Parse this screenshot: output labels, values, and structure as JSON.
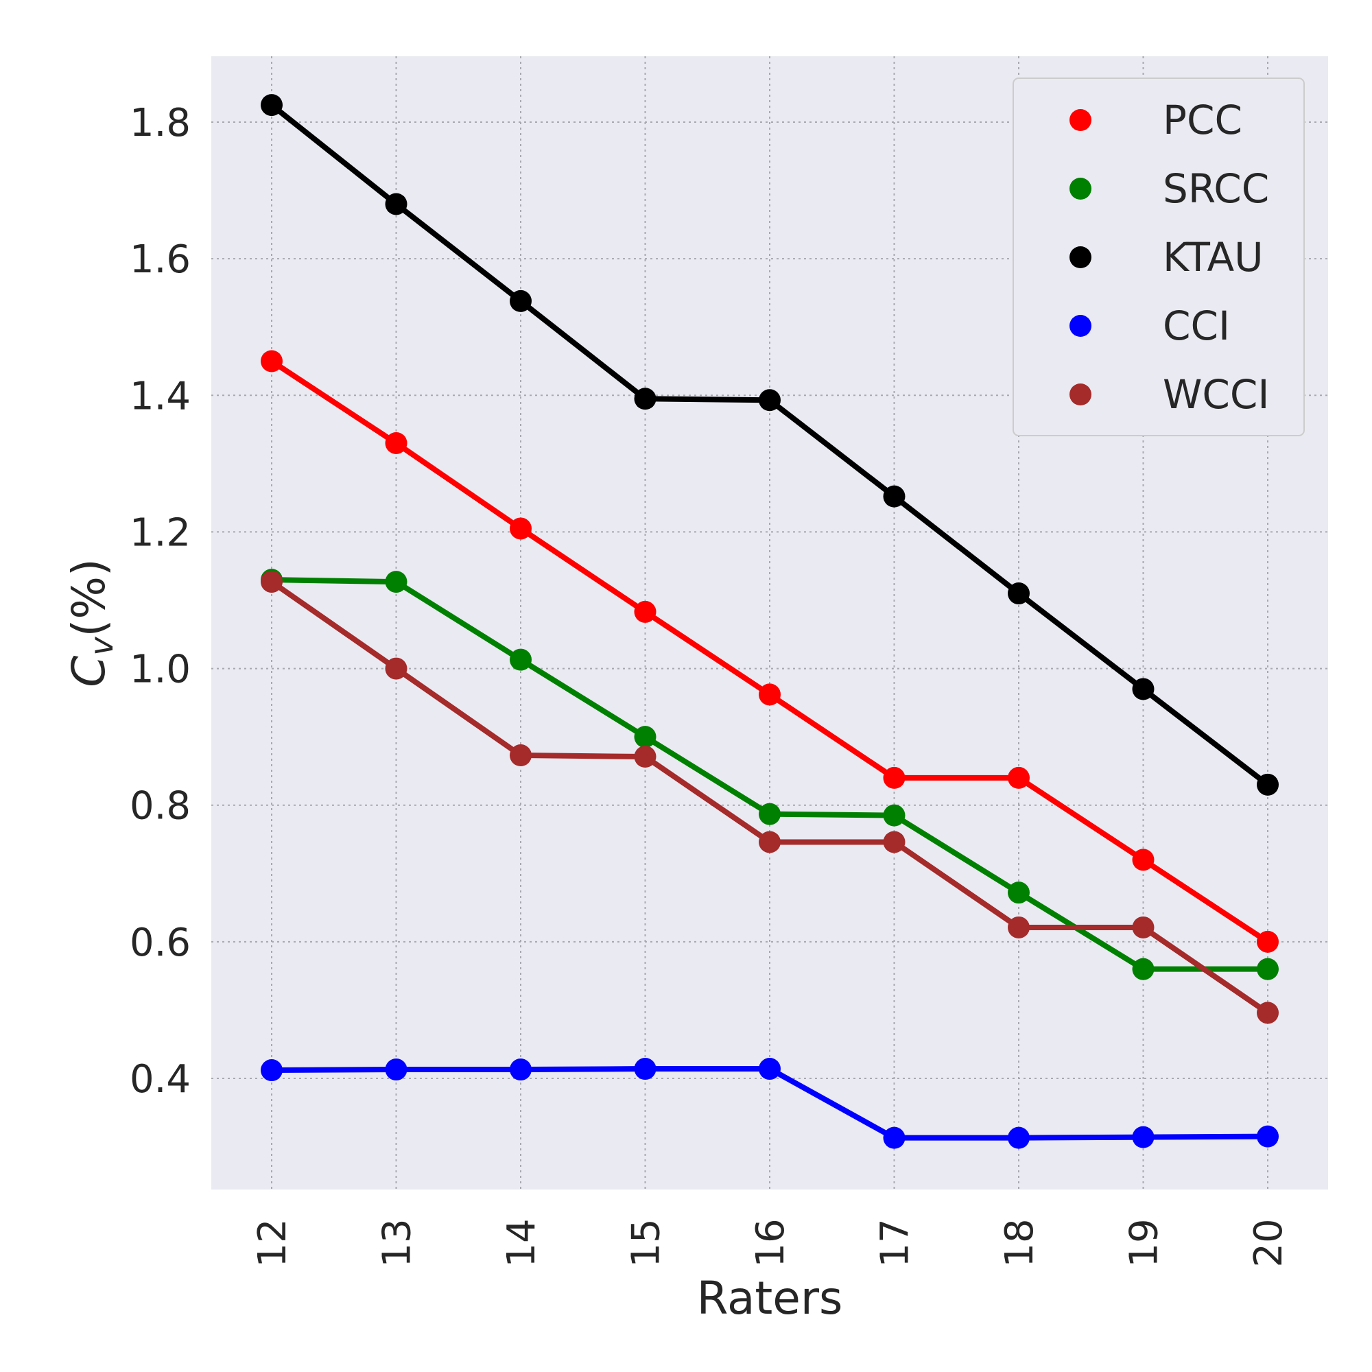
{
  "chart_data": {
    "type": "line",
    "title": "",
    "xlabel": "Raters",
    "ylabel_main": "C",
    "ylabel_sub": "v",
    "ylabel_suffix": "(%)",
    "x": [
      12,
      13,
      14,
      15,
      16,
      17,
      18,
      19,
      20
    ],
    "x_tick_labels": [
      "12",
      "13",
      "14",
      "15",
      "16",
      "17",
      "18",
      "19",
      "20"
    ],
    "y_ticks": [
      0.4,
      0.6,
      0.8,
      1.0,
      1.2,
      1.4,
      1.6,
      1.8
    ],
    "y_tick_labels": [
      "0.4",
      "0.6",
      "0.8",
      "1.0",
      "1.2",
      "1.4",
      "1.6",
      "1.8"
    ],
    "ylim": [
      0.24,
      1.9
    ],
    "grid": true,
    "legend_position": "top-right",
    "series": [
      {
        "name": "PCC",
        "color": "#ff0000",
        "values": [
          1.45,
          1.33,
          1.205,
          1.083,
          0.962,
          0.84,
          0.84,
          0.72,
          0.6
        ]
      },
      {
        "name": "SRCC",
        "color": "#008000",
        "values": [
          1.13,
          1.127,
          1.013,
          0.9,
          0.787,
          0.785,
          0.672,
          0.56,
          0.56
        ]
      },
      {
        "name": "KTAU",
        "color": "#000000",
        "values": [
          1.825,
          1.68,
          1.538,
          1.395,
          1.393,
          1.252,
          1.11,
          0.97,
          0.83
        ]
      },
      {
        "name": "CCI",
        "color": "#0000ff",
        "values": [
          0.412,
          0.413,
          0.413,
          0.414,
          0.414,
          0.313,
          0.313,
          0.314,
          0.315
        ]
      },
      {
        "name": "WCCI",
        "color": "#a52a2a",
        "values": [
          1.127,
          1.0,
          0.873,
          0.871,
          0.746,
          0.746,
          0.621,
          0.621,
          0.496
        ]
      }
    ]
  }
}
